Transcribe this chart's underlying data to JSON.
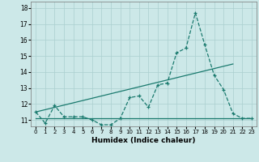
{
  "xlabel": "Humidex (Indice chaleur)",
  "background_color": "#cce8e8",
  "line_color": "#1a7a6e",
  "grid_color": "#aacfcf",
  "xlim": [
    -0.5,
    23.5
  ],
  "ylim": [
    10.6,
    18.4
  ],
  "yticks": [
    11,
    12,
    13,
    14,
    15,
    16,
    17,
    18
  ],
  "xticks": [
    0,
    1,
    2,
    3,
    4,
    5,
    6,
    7,
    8,
    9,
    10,
    11,
    12,
    13,
    14,
    15,
    16,
    17,
    18,
    19,
    20,
    21,
    22,
    23
  ],
  "humidex_x": [
    0,
    1,
    2,
    3,
    4,
    5,
    6,
    7,
    8,
    9,
    10,
    11,
    12,
    13,
    14,
    15,
    16,
    17,
    18,
    19,
    20,
    21,
    22,
    23
  ],
  "humidex_y": [
    11.5,
    10.8,
    11.9,
    11.2,
    11.2,
    11.2,
    11.0,
    10.7,
    10.7,
    11.1,
    12.4,
    12.5,
    11.8,
    13.2,
    13.3,
    15.2,
    15.5,
    17.7,
    15.7,
    13.8,
    12.9,
    11.4,
    11.1,
    11.1
  ],
  "flat_line_x": [
    0,
    23
  ],
  "flat_line_y": [
    11.1,
    11.1
  ],
  "trend_line_x": [
    0,
    21
  ],
  "trend_line_y": [
    11.5,
    14.5
  ]
}
